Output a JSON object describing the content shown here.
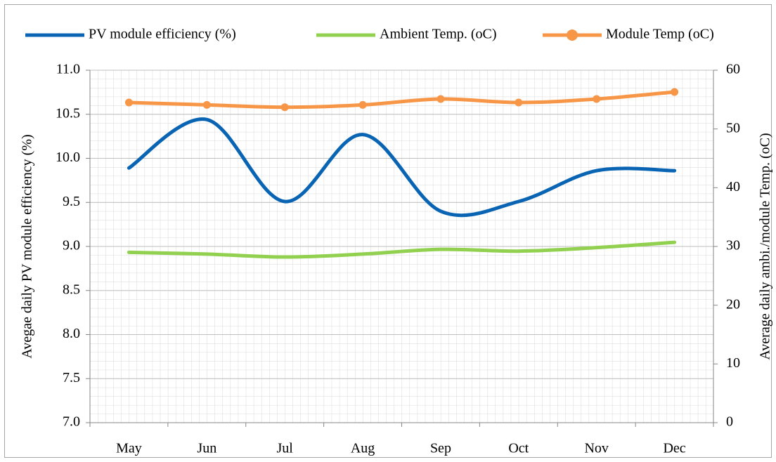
{
  "chart_data": {
    "type": "line",
    "categories": [
      "May",
      "Jun",
      "Jul",
      "Aug",
      "Sep",
      "Oct",
      "Nov",
      "Dec"
    ],
    "series": [
      {
        "name": "PV module efficiency (%)",
        "color": "#0a64b4",
        "values": [
          9.89,
          10.44,
          9.51,
          10.27,
          9.4,
          9.51,
          9.86,
          9.86
        ]
      },
      {
        "name": "Ambient Temp. (oC)",
        "color": "#92d050",
        "axis": "y2",
        "values": [
          29.0,
          28.7,
          28.2,
          28.7,
          29.5,
          29.2,
          29.8,
          30.7
        ]
      },
      {
        "name": "Module Temp (oC)",
        "color": "#f79646",
        "axis": "y2",
        "values": [
          54.5,
          54.1,
          53.7,
          54.1,
          55.1,
          54.5,
          55.1,
          56.3
        ]
      }
    ],
    "ylabel": "Avegae daily PV module efficiency (%)",
    "y2label": "Average daily ambi./module Temp. (oC)",
    "ylim": [
      7.0,
      11.0
    ],
    "yticks": [
      {
        "value": 7,
        "label": "7.0"
      },
      7.5,
      {
        "value": 8,
        "label": "8.0"
      },
      8.5,
      {
        "value": 9,
        "label": "9.0"
      },
      9.5,
      {
        "value": 10,
        "label": "10.0"
      },
      10.5,
      {
        "value": 11,
        "label": "11.0"
      }
    ],
    "y2lim": [
      0,
      60
    ],
    "y2ticks": [
      0,
      10,
      20,
      30,
      40,
      50,
      60
    ],
    "grid": true,
    "legend": "top"
  }
}
